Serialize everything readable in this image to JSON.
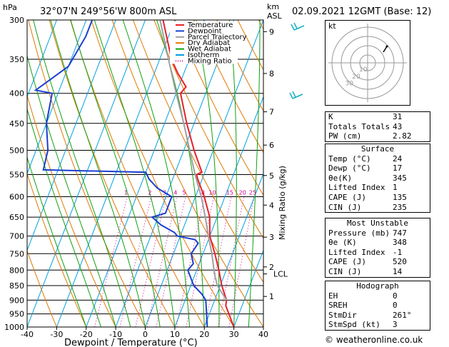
{
  "header": {
    "hpa": "hPa",
    "location": "32°07'N  249°56'W  800m  ASL",
    "km": "km",
    "asl": "ASL",
    "datetime": "02.09.2021  12GMT  (Base: 12)"
  },
  "chart_data": {
    "type": "line",
    "xlabel": "Dewpoint / Temperature (°C)",
    "ylabel": "hPa",
    "right_label": "Mixing Ratio (g/kg)",
    "xlim": [
      -40,
      40
    ],
    "ylim": [
      1000,
      300
    ],
    "x_ticks": [
      "-40",
      "-30",
      "-20",
      "-10",
      "0",
      "10",
      "20",
      "30",
      "40"
    ],
    "p_ticks": [
      "300",
      "350",
      "400",
      "450",
      "500",
      "550",
      "600",
      "650",
      "700",
      "750",
      "800",
      "850",
      "900",
      "950",
      "1000"
    ],
    "km_ticks": [
      {
        "label": "9",
        "p": 314
      },
      {
        "label": "8",
        "p": 370
      },
      {
        "label": "7",
        "p": 430
      },
      {
        "label": "6",
        "p": 490
      },
      {
        "label": "5",
        "p": 552
      },
      {
        "label": "4",
        "p": 620
      },
      {
        "label": "3",
        "p": 703
      },
      {
        "label": "2",
        "p": 790
      },
      {
        "label": "1",
        "p": 887
      }
    ],
    "lcl": {
      "label": "LCL",
      "p": 812
    },
    "mixing_ratio_labels": [
      "1",
      "2",
      "3",
      "4",
      "5",
      "8",
      "10",
      "15",
      "20",
      "25"
    ],
    "legend": [
      "Temperature",
      "Dewpoint",
      "Parcel Trajectory",
      "Dry Adiabat",
      "Wet Adiabat",
      "Isotherm",
      "Mixing Ratio"
    ],
    "series": [
      {
        "name": "Temperature",
        "color": "#e8202a",
        "points": [
          [
            1000,
            30
          ],
          [
            920,
            24.5
          ],
          [
            900,
            24
          ],
          [
            850,
            20.5
          ],
          [
            800,
            17.5
          ],
          [
            750,
            14
          ],
          [
            700,
            10
          ],
          [
            650,
            7.5
          ],
          [
            600,
            3
          ],
          [
            560,
            -1.5
          ],
          [
            550,
            -2.5
          ],
          [
            545,
            -1
          ],
          [
            500,
            -6.5
          ],
          [
            450,
            -12.5
          ],
          [
            400,
            -18.5
          ],
          [
            390,
            -17.5
          ],
          [
            370,
            -22
          ],
          [
            350,
            -26
          ],
          [
            300,
            -34
          ]
        ]
      },
      {
        "name": "Dewpoint",
        "color": "#1a3fd0",
        "points": [
          [
            1000,
            21
          ],
          [
            900,
            17
          ],
          [
            880,
            15
          ],
          [
            850,
            11
          ],
          [
            800,
            7
          ],
          [
            780,
            8
          ],
          [
            750,
            6
          ],
          [
            720,
            7
          ],
          [
            710,
            5.5
          ],
          [
            700,
            -1
          ],
          [
            690,
            -2.5
          ],
          [
            670,
            -8
          ],
          [
            650,
            -12
          ],
          [
            640,
            -8
          ],
          [
            620,
            -8
          ],
          [
            600,
            -8
          ],
          [
            580,
            -14
          ],
          [
            560,
            -18
          ],
          [
            545,
            -20
          ],
          [
            540,
            -55
          ],
          [
            500,
            -56
          ],
          [
            450,
            -60
          ],
          [
            400,
            -62
          ],
          [
            395,
            -68
          ],
          [
            360,
            -60
          ],
          [
            320,
            -58
          ],
          [
            300,
            -58
          ]
        ]
      },
      {
        "name": "Parcel Trajectory",
        "color": "#a0a0a0",
        "points": [
          [
            900,
            24
          ],
          [
            850,
            19
          ],
          [
            812,
            16.5
          ],
          [
            750,
            13
          ],
          [
            700,
            9.5
          ],
          [
            650,
            6
          ],
          [
            600,
            2
          ],
          [
            550,
            -3
          ],
          [
            500,
            -8
          ],
          [
            450,
            -13.5
          ],
          [
            400,
            -20
          ],
          [
            350,
            -27
          ],
          [
            300,
            -35
          ]
        ]
      }
    ]
  },
  "stats": {
    "indices": [
      {
        "k": "K",
        "v": "31"
      },
      {
        "k": "Totals Totals",
        "v": "43"
      },
      {
        "k": "PW (cm)",
        "v": "2.82"
      }
    ],
    "surface": {
      "title": "Surface",
      "rows": [
        {
          "k": "Temp (°C)",
          "v": "24"
        },
        {
          "k": "Dewp (°C)",
          "v": "17"
        },
        {
          "k": "θe(K)",
          "v": "345"
        },
        {
          "k": "Lifted Index",
          "v": "1"
        },
        {
          "k": "CAPE (J)",
          "v": "135"
        },
        {
          "k": "CIN (J)",
          "v": "235"
        }
      ]
    },
    "most_unstable": {
      "title": "Most Unstable",
      "rows": [
        {
          "k": "Pressure (mb)",
          "v": "747"
        },
        {
          "k": "θe (K)",
          "v": "348"
        },
        {
          "k": "Lifted Index",
          "v": "-1"
        },
        {
          "k": "CAPE (J)",
          "v": "520"
        },
        {
          "k": "CIN (J)",
          "v": "14"
        }
      ]
    },
    "hodograph": {
      "title": "Hodograph",
      "rows": [
        {
          "k": "EH",
          "v": "0"
        },
        {
          "k": "SREH",
          "v": "0"
        },
        {
          "k": "StmDir",
          "v": "261°"
        },
        {
          "k": "StmSpd (kt)",
          "v": "3"
        }
      ]
    }
  },
  "hodo_panel": {
    "label": "kt",
    "rings": [
      "10",
      "20",
      "30",
      "40"
    ]
  },
  "credit": "© weatheronline.co.uk",
  "colors": {
    "temperature": "#e8202a",
    "dewpoint": "#1a3fd0",
    "parcel": "#a0a0a0",
    "dry_adiabat": "#e07800",
    "wet_adiabat": "#10a010",
    "isotherm": "#00a0e0",
    "mixing_ratio": "#d0008a"
  }
}
